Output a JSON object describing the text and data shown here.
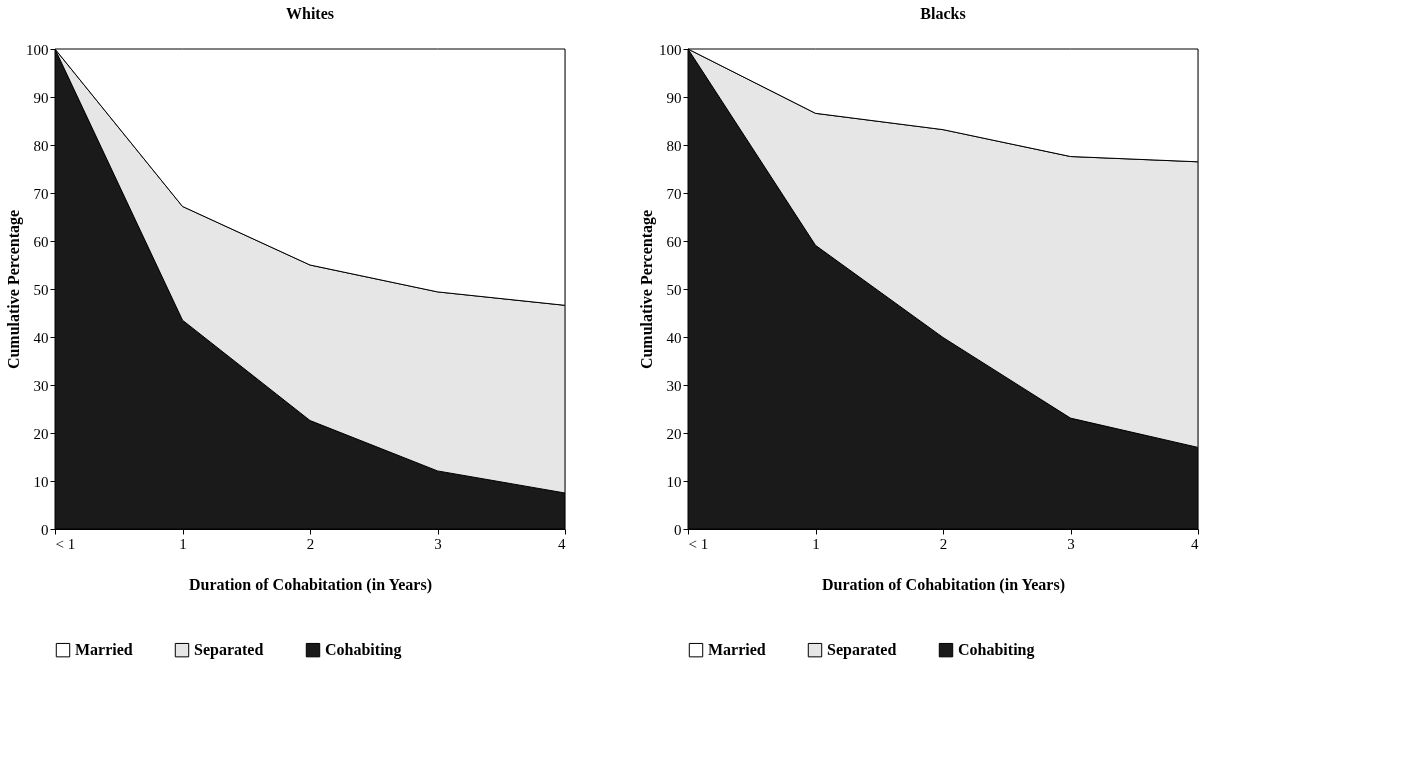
{
  "chart_data": [
    {
      "type": "area",
      "stacked": true,
      "title": "Whites",
      "xlabel": "Duration of Cohabitation (in Years)",
      "ylabel": "Cumulative Percentage",
      "categories": [
        "< 1",
        "1",
        "2",
        "3",
        "4"
      ],
      "series": [
        {
          "name": "Cohabiting",
          "color": "#1a1a1a",
          "values": [
            100,
            43.5,
            22.6,
            12.1,
            7.5
          ]
        },
        {
          "name": "Separated",
          "color": "#e6e6e6",
          "values": [
            0,
            23.7,
            32.4,
            37.3,
            39.1
          ]
        },
        {
          "name": "Married",
          "color": "#ffffff",
          "values": [
            0,
            32.8,
            45,
            50.6,
            53.4
          ]
        }
      ],
      "ylim": [
        0,
        100
      ],
      "yticks": [
        0,
        10,
        20,
        30,
        40,
        50,
        60,
        70,
        80,
        90,
        100
      ],
      "legend": "bottom"
    },
    {
      "type": "area",
      "stacked": true,
      "title": "Blacks",
      "xlabel": "Duration of Cohabitation (in Years)",
      "ylabel": "Cumulative Percentage",
      "categories": [
        "< 1",
        "1",
        "2",
        "3",
        "4"
      ],
      "series": [
        {
          "name": "Cohabiting",
          "color": "#1a1a1a",
          "values": [
            100,
            59.1,
            39.9,
            23.1,
            17
          ]
        },
        {
          "name": "Separated",
          "color": "#e6e6e6",
          "values": [
            0,
            27.5,
            43.3,
            54.5,
            59.5
          ]
        },
        {
          "name": "Married",
          "color": "#ffffff",
          "values": [
            0,
            13.4,
            16.8,
            22.4,
            23.5
          ]
        }
      ],
      "ylim": [
        0,
        100
      ],
      "yticks": [
        0,
        10,
        20,
        30,
        40,
        50,
        60,
        70,
        80,
        90,
        100
      ],
      "legend": "bottom"
    }
  ]
}
